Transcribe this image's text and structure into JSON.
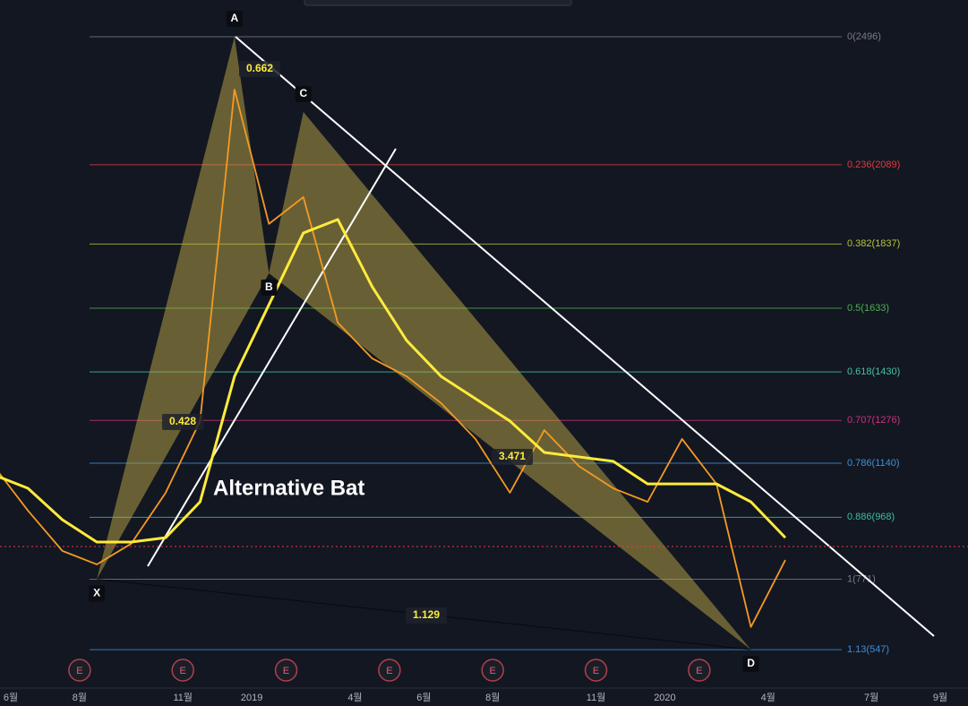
{
  "chart_data": {
    "type": "line",
    "title": "Alternative Bat",
    "xlim": [
      "2018-06",
      "2020-09"
    ],
    "ylim": [
      419,
      2613
    ],
    "grid": true,
    "xticks": [
      {
        "value": "2018-06",
        "label": "6월"
      },
      {
        "value": "2018-08",
        "label": "8월"
      },
      {
        "value": "2018-11",
        "label": "11월"
      },
      {
        "value": "2019-01",
        "label": "2019"
      },
      {
        "value": "2019-04",
        "label": "4월"
      },
      {
        "value": "2019-06",
        "label": "6월"
      },
      {
        "value": "2019-08",
        "label": "8월"
      },
      {
        "value": "2019-11",
        "label": "11월"
      },
      {
        "value": "2020-01",
        "label": "2020"
      },
      {
        "value": "2020-04",
        "label": "4월"
      },
      {
        "value": "2020-07",
        "label": "7월"
      },
      {
        "value": "2020-09",
        "label": "9월"
      }
    ],
    "x": [
      "2018-05",
      "2018-06",
      "2018-07",
      "2018-08",
      "2018-09",
      "2018-10",
      "2018-11",
      "2018-12",
      "2019-01",
      "2019-02",
      "2019-03",
      "2019-04",
      "2019-05",
      "2019-06",
      "2019-07",
      "2019-08",
      "2019-09",
      "2019-10",
      "2019-11",
      "2019-12",
      "2020-01",
      "2020-02",
      "2020-03",
      "2020-04"
    ],
    "series": [
      {
        "color": "#f59a23",
        "values": [
          1132,
          989,
          861,
          818,
          884,
          1046,
          1274,
          2328,
          1901,
          1986,
          1587,
          1473,
          1416,
          1331,
          1217,
          1046,
          1245,
          1131,
          1060,
          1017,
          1217,
          1074,
          619,
          832
        ]
      },
      {
        "color": "#ffeb3b",
        "values": [
          1103,
          1060,
          960,
          889,
          889,
          903,
          1017,
          1416,
          1644,
          1872,
          1915,
          1701,
          1530,
          1416,
          1345,
          1274,
          1174,
          1160,
          1146,
          1074,
          1074,
          1074,
          1017,
          903
        ]
      }
    ],
    "fib_levels": [
      {
        "value": 2496,
        "label": "0(2496)",
        "color": "#787b86"
      },
      {
        "value": 2089,
        "label": "0.236(2089)",
        "color": "#e0393e"
      },
      {
        "value": 1837,
        "label": "0.382(1837)",
        "color": "#b5c338"
      },
      {
        "value": 1633,
        "label": "0.5(1633)",
        "color": "#4caf50"
      },
      {
        "value": 1430,
        "label": "0.618(1430)",
        "color": "#46c0a0"
      },
      {
        "value": 1276,
        "label": "0.707(1276)",
        "color": "#c9337b"
      },
      {
        "value": 1140,
        "label": "0.786(1140)",
        "color": "#3d8fd6"
      },
      {
        "value": 968,
        "label": "0.886(968)",
        "color": "#3dbf9a"
      },
      {
        "value": 771,
        "label": "1(771)",
        "color": "#787b86"
      },
      {
        "value": 547,
        "label": "1.13(547)",
        "color": "#3d8fd6"
      }
    ],
    "pattern": [
      {
        "label": "X",
        "x": "2018-08",
        "value": 771
      },
      {
        "label": "A",
        "x": "2018-12",
        "value": 2496
      },
      {
        "label": "B",
        "x": "2019-01",
        "value": 1744
      },
      {
        "label": "C",
        "x": "2019-02",
        "value": 2257
      },
      {
        "label": "D",
        "x": "2020-03",
        "value": 547
      }
    ],
    "ratios": [
      0.428,
      0.662,
      3.471,
      1.129
    ],
    "earnings": [
      {
        "x": "2018-08",
        "label": "E"
      },
      {
        "x": "2018-11",
        "label": "E"
      },
      {
        "x": "2019-02",
        "label": "E"
      },
      {
        "x": "2019-05",
        "label": "E"
      },
      {
        "x": "2019-08",
        "label": "E"
      },
      {
        "x": "2019-11",
        "label": "E"
      },
      {
        "x": "2020-02",
        "label": "E"
      }
    ]
  }
}
